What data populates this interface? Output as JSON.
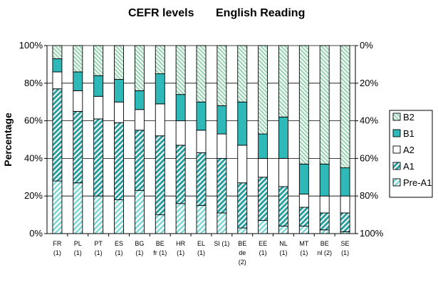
{
  "chart_data": {
    "type": "bar",
    "stacked": true,
    "title_left": "CEFR levels",
    "title_right": "English Reading",
    "ylabel": "Percentage",
    "ylim": [
      0,
      100
    ],
    "yticks_left": [
      "0%",
      "20%",
      "40%",
      "60%",
      "80%",
      "100%"
    ],
    "yticks_right": [
      "100%",
      "80%",
      "60%",
      "40%",
      "20%",
      "0%"
    ],
    "grid": true,
    "legend_position": "right",
    "categories": [
      {
        "lines": [
          "FR",
          "(1)"
        ]
      },
      {
        "lines": [
          "PL",
          "(1)"
        ]
      },
      {
        "lines": [
          "PT",
          "(1)"
        ]
      },
      {
        "lines": [
          "ES",
          "(1)"
        ]
      },
      {
        "lines": [
          "BG",
          "(1)"
        ]
      },
      {
        "lines": [
          "BE",
          "fr (1)"
        ]
      },
      {
        "lines": [
          "HR",
          "(1)"
        ]
      },
      {
        "lines": [
          "EL",
          "(1)"
        ]
      },
      {
        "lines": [
          "SI (1)"
        ]
      },
      {
        "lines": [
          "BE",
          "de",
          "(2)"
        ]
      },
      {
        "lines": [
          "EE",
          "(1)"
        ]
      },
      {
        "lines": [
          "NL",
          "(1)"
        ]
      },
      {
        "lines": [
          "MT",
          "(1)"
        ]
      },
      {
        "lines": [
          "BE",
          "nl (2)"
        ]
      },
      {
        "lines": [
          "SE",
          "(1)"
        ]
      }
    ],
    "series": [
      {
        "name": "Pre-A1",
        "values": [
          28,
          27,
          20,
          18,
          23,
          10,
          16,
          15,
          11,
          3,
          7,
          4,
          4,
          2,
          1
        ]
      },
      {
        "name": "A1",
        "values": [
          49,
          38,
          41,
          41,
          32,
          42,
          31,
          28,
          29,
          24,
          23,
          21,
          10,
          9,
          10
        ]
      },
      {
        "name": "A2",
        "values": [
          9,
          11,
          12,
          11,
          11,
          17,
          13,
          12,
          13,
          20,
          10,
          15,
          7,
          9,
          9
        ]
      },
      {
        "name": "B1",
        "values": [
          7,
          10,
          11,
          12,
          10,
          16,
          14,
          15,
          15,
          23,
          13,
          22,
          16,
          17,
          15
        ]
      },
      {
        "name": "B2",
        "values": [
          7,
          14,
          16,
          18,
          24,
          15,
          26,
          30,
          32,
          30,
          47,
          38,
          63,
          63,
          65
        ]
      }
    ],
    "colors": {
      "pre_a1": "#7fd6d6",
      "a1": "#2a9f9f",
      "a2": "#ffffff",
      "b1": "#2fb8b8",
      "b2": "#9bd4b4"
    }
  }
}
